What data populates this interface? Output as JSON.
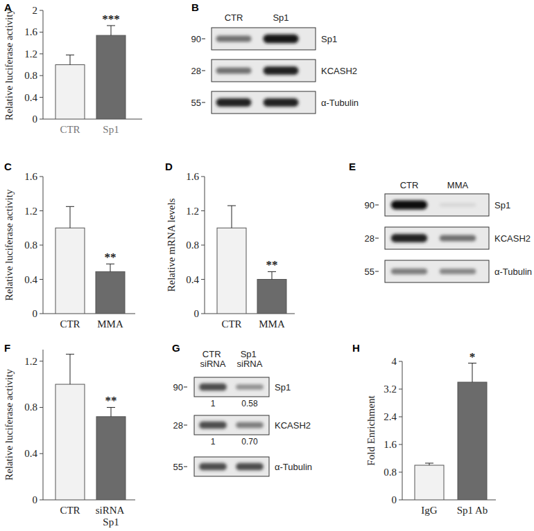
{
  "chart_data": [
    {
      "type": "bar",
      "panel": "A",
      "y_label": "Relative luciferase activity",
      "categories": [
        "CTR",
        "Sp1"
      ],
      "values": [
        1.0,
        1.54
      ],
      "errors": [
        0.18,
        0.18
      ],
      "colors": [
        "#f2f2f2",
        "#6b6b6b"
      ],
      "ylim": [
        0,
        2
      ],
      "yticks": [
        0,
        0.4,
        0.8,
        1.2,
        1.6,
        2
      ],
      "annotation": "***"
    },
    {
      "type": "western_blot",
      "panel": "B",
      "lanes": [
        "CTR",
        "Sp1"
      ],
      "bands": [
        {
          "name": "Sp1",
          "mw": 90,
          "intensities": [
            0.55,
            0.95
          ]
        },
        {
          "name": "KCASH2",
          "mw": 28,
          "intensities": [
            0.55,
            0.9
          ]
        },
        {
          "name": "α-Tubulin",
          "mw": 55,
          "intensities": [
            0.9,
            0.9
          ]
        }
      ]
    },
    {
      "type": "bar",
      "panel": "C",
      "y_label": "Relative luciferase activity",
      "categories": [
        "CTR",
        "MMA"
      ],
      "values": [
        1.0,
        0.49
      ],
      "errors": [
        0.25,
        0.09
      ],
      "colors": [
        "#f2f2f2",
        "#6b6b6b"
      ],
      "ylim": [
        0,
        1.6
      ],
      "yticks": [
        0,
        0.4,
        0.8,
        1.2,
        1.6
      ],
      "annotation": "**"
    },
    {
      "type": "bar",
      "panel": "D",
      "y_label": "Relative mRNA levels",
      "categories": [
        "CTR",
        "MMA"
      ],
      "values": [
        1.0,
        0.4
      ],
      "errors": [
        0.26,
        0.09
      ],
      "colors": [
        "#f2f2f2",
        "#6b6b6b"
      ],
      "ylim": [
        0,
        1.6
      ],
      "yticks": [
        0,
        0.4,
        0.8,
        1.2,
        1.6
      ],
      "annotation": "**"
    },
    {
      "type": "western_blot",
      "panel": "E",
      "lanes": [
        "CTR",
        "MMA"
      ],
      "bands": [
        {
          "name": "Sp1",
          "mw": 90,
          "intensities": [
            1.0,
            0.1
          ]
        },
        {
          "name": "KCASH2",
          "mw": 28,
          "intensities": [
            0.9,
            0.55
          ]
        },
        {
          "name": "α-Tubulin",
          "mw": 55,
          "intensities": [
            0.5,
            0.45
          ]
        }
      ]
    },
    {
      "type": "bar",
      "panel": "F",
      "y_label": "Relative luciferase activity",
      "categories": [
        "CTR",
        "siRNA Sp1"
      ],
      "values": [
        1.0,
        0.72
      ],
      "errors": [
        0.26,
        0.08
      ],
      "colors": [
        "#f2f2f2",
        "#6b6b6b"
      ],
      "ylim": [
        0,
        1.3
      ],
      "yticks": [
        0,
        0.4,
        0.8,
        1.2
      ],
      "annotation": "**"
    },
    {
      "type": "western_blot",
      "panel": "G",
      "lanes": [
        "CTR siRNA",
        "Sp1 siRNA"
      ],
      "bands": [
        {
          "name": "Sp1",
          "mw": 90,
          "intensities": [
            0.7,
            0.4
          ],
          "quantification": [
            1,
            0.58
          ]
        },
        {
          "name": "KCASH2",
          "mw": 28,
          "intensities": [
            0.7,
            0.5
          ],
          "quantification": [
            1,
            0.7
          ],
          "quantification_labels": [
            "1",
            "0.70"
          ]
        },
        {
          "name": "α-Tubulin",
          "mw": 55,
          "intensities": [
            0.7,
            0.7
          ]
        }
      ]
    },
    {
      "type": "bar",
      "panel": "H",
      "y_label": "Fold Enrichment",
      "categories": [
        "IgG",
        "Sp1 Ab"
      ],
      "values": [
        1.0,
        3.4
      ],
      "errors": [
        0.06,
        0.55
      ],
      "colors": [
        "#f2f2f2",
        "#6b6b6b"
      ],
      "ylim": [
        0,
        4
      ],
      "yticks": [
        0,
        0.8,
        1.6,
        2.4,
        3.2,
        4
      ],
      "annotation": "*"
    }
  ]
}
